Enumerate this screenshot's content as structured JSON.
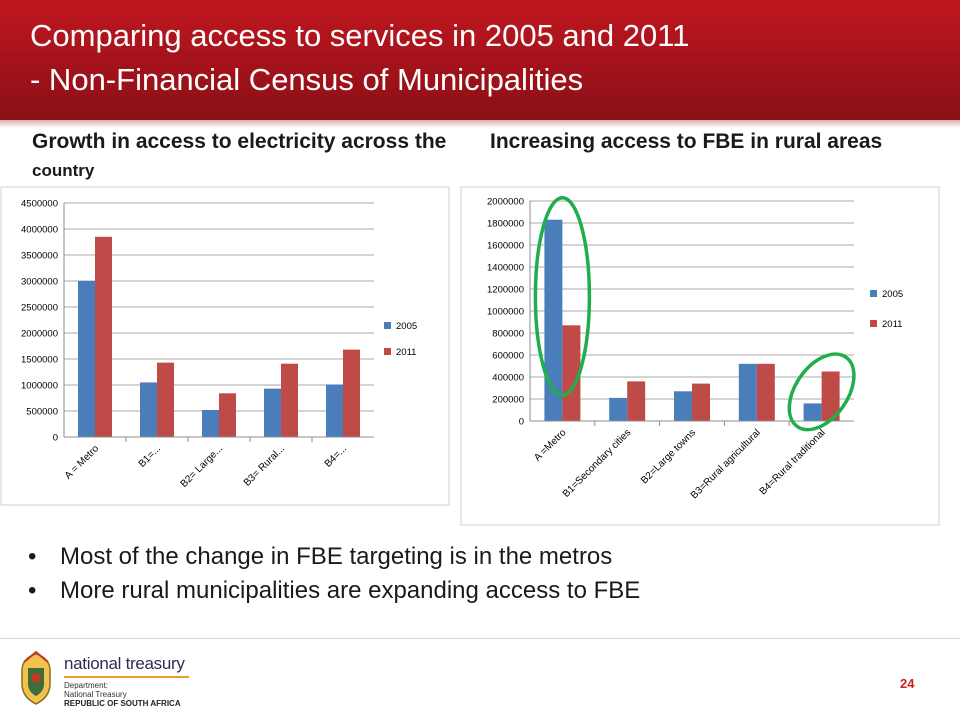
{
  "slide": {
    "title_line1": "Comparing access to services in 2005 and 2011",
    "title_line2": "- Non-Financial Census of Municipalities",
    "left_heading_bold": "Growth in access to electricity across the",
    "left_heading_small": "country",
    "right_heading": "Increasing access to FBE in rural areas",
    "bullets": [
      "Most of the change in FBE targeting is in the metros",
      "More rural municipalities are expanding access to FBE"
    ],
    "page_number": "24"
  },
  "footer": {
    "brand": "national treasury",
    "line1": "Department:",
    "line2": "National Treasury",
    "line3": "REPUBLIC OF SOUTH AFRICA"
  },
  "colors": {
    "header": "#a0121a",
    "series_2005": "#4a7ebb",
    "series_2011": "#be4b48",
    "highlight": "#1fae4b",
    "page_number": "#cc2222"
  },
  "chart_data": [
    {
      "type": "bar",
      "categories": [
        "A = Metro",
        "B1=...",
        "B2= Large...",
        "B3= Rural...",
        "B4=..."
      ],
      "series": [
        {
          "name": "2005",
          "values": [
            3000000,
            1050000,
            520000,
            930000,
            1010000
          ]
        },
        {
          "name": "2011",
          "values": [
            3850000,
            1430000,
            840000,
            1410000,
            1680000
          ]
        }
      ],
      "ylim": [
        0,
        4500000
      ],
      "yticks": [
        "0",
        "500000",
        "1000000",
        "1500000",
        "2000000",
        "2500000",
        "3000000",
        "3500000",
        "4000000",
        "4500000"
      ],
      "grid": true,
      "legend": "right"
    },
    {
      "type": "bar",
      "categories": [
        "A =Metro",
        "B1=Secondary cities",
        "B2=Large towns",
        "B3=Rural agricultural",
        "B4=Rural traditional"
      ],
      "series": [
        {
          "name": "2005",
          "values": [
            1830000,
            210000,
            270000,
            520000,
            160000
          ]
        },
        {
          "name": "2011",
          "values": [
            870000,
            360000,
            340000,
            520000,
            450000
          ]
        }
      ],
      "ylim": [
        0,
        2000000
      ],
      "yticks": [
        "0",
        "200000",
        "400000",
        "600000",
        "800000",
        "1000000",
        "1200000",
        "1400000",
        "1600000",
        "1800000",
        "2000000"
      ],
      "grid": true,
      "legend": "right",
      "highlighted_categories": [
        "A =Metro",
        "B4=Rural traditional"
      ]
    }
  ]
}
